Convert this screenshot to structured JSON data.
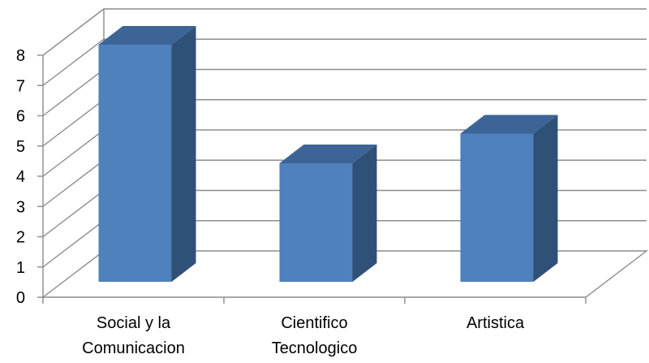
{
  "chart_data": {
    "type": "bar",
    "style": "3d-clustered-column",
    "categories": [
      "Social y la\nComunicacion",
      "Cientifico\nTecnologico",
      "Artistica"
    ],
    "values": [
      8,
      4,
      5
    ],
    "ylim": [
      0,
      8
    ],
    "yticks": [
      "0",
      "1",
      "2",
      "3",
      "4",
      "5",
      "6",
      "7",
      "8"
    ],
    "title": "",
    "xlabel": "",
    "ylabel": "",
    "grid": true,
    "legend": "none",
    "colors": {
      "bar_front": "#4f81bd",
      "bar_side": "#2f5077",
      "bar_top": "#3d6496",
      "gridline": "#8c8c8c",
      "axis": "#8c8c8c"
    }
  }
}
